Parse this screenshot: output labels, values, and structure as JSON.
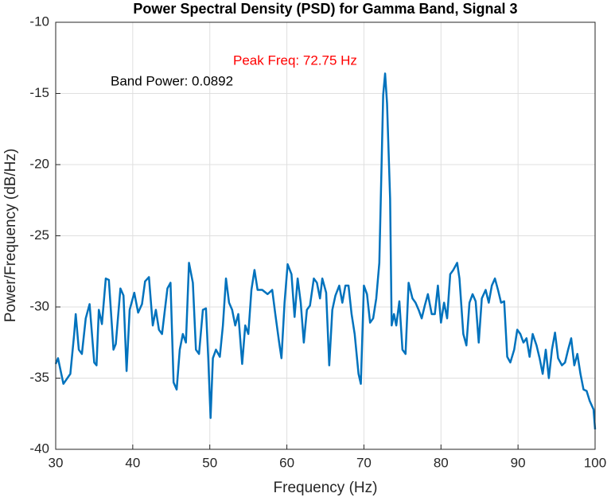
{
  "chart_data": {
    "type": "line",
    "title": "Power Spectral Density (PSD) for Gamma Band, Signal 3",
    "x_label": "Frequency (Hz)",
    "y_label": "Power/Frequency (dB/Hz)",
    "annotations": [
      "Peak Freq: 72.75 Hz",
      "Band Power: 0.0892"
    ],
    "xlim": [
      30,
      100
    ],
    "xticks": [
      30,
      40,
      50,
      60,
      70,
      80,
      90,
      100
    ],
    "ylim": [
      -40,
      -10
    ],
    "yticks": [
      -40,
      -35,
      -30,
      -25,
      -20,
      -15,
      -10
    ],
    "grid": true,
    "series": [
      {
        "color": "#0072bd",
        "x": [
          30,
          30.3,
          31,
          31.9,
          32.4,
          32.6,
          33,
          33.4,
          33.9,
          34.4,
          35,
          35.3,
          35.6,
          36,
          36.5,
          36.9,
          37.5,
          37.8,
          38.4,
          38.8,
          39.2,
          39.6,
          40.2,
          40.7,
          41.2,
          41.6,
          42.1,
          42.6,
          43,
          43.4,
          43.8,
          44.5,
          44.9,
          45.3,
          45.7,
          46.1,
          46.5,
          46.9,
          47.3,
          47.8,
          48.2,
          48.6,
          49.1,
          49.5,
          49.8,
          50.1,
          50.4,
          50.8,
          51.3,
          51.7,
          52.1,
          52.5,
          52.9,
          53.3,
          53.7,
          54.2,
          54.6,
          55,
          55.4,
          55.8,
          56.2,
          56.8,
          57.5,
          58.1,
          58.5,
          59,
          59.3,
          59.7,
          60.1,
          60.6,
          61,
          61.4,
          61.8,
          62.2,
          62.6,
          63,
          63.5,
          63.9,
          64.3,
          64.6,
          65.1,
          65.5,
          65.9,
          66.3,
          66.8,
          67.2,
          67.6,
          68,
          68.4,
          68.8,
          69.3,
          69.6,
          70,
          70.4,
          70.8,
          71.2,
          71.6,
          72,
          72.5,
          72.75,
          73,
          73.4,
          73.6,
          73.9,
          74.2,
          74.6,
          75,
          75.4,
          75.8,
          76.3,
          76.7,
          77.1,
          77.5,
          77.9,
          78.3,
          78.8,
          79.2,
          79.6,
          80,
          80.4,
          80.8,
          81.2,
          81.6,
          82.1,
          82.4,
          82.9,
          83.3,
          83.7,
          84.1,
          84.5,
          84.9,
          85.3,
          85.8,
          86.2,
          86.6,
          87,
          87.4,
          87.8,
          88.2,
          88.6,
          89,
          89.5,
          89.9,
          90.3,
          90.7,
          91.1,
          91.5,
          91.9,
          92.4,
          92.8,
          93.2,
          93.6,
          94,
          94.4,
          94.8,
          95.2,
          95.7,
          96.1,
          96.5,
          96.9,
          97.3,
          97.7,
          98.1,
          98.5,
          98.9,
          99.3,
          99.8,
          100
        ],
        "values": [
          -34,
          -33.6,
          -35.4,
          -34.7,
          -31.9,
          -30.5,
          -33,
          -33.3,
          -30.8,
          -29.8,
          -33.9,
          -34.1,
          -30.2,
          -31.2,
          -28,
          -28.1,
          -33,
          -32.6,
          -28.7,
          -29.2,
          -34.5,
          -30.2,
          -29,
          -30.4,
          -29.8,
          -28.2,
          -27.9,
          -31.3,
          -30.2,
          -31.6,
          -31.9,
          -28.7,
          -28.3,
          -35.3,
          -35.8,
          -33,
          -31.9,
          -32.5,
          -26.9,
          -28.3,
          -33,
          -33.3,
          -30.2,
          -30.1,
          -33.6,
          -37.8,
          -33.6,
          -33,
          -33.5,
          -31.3,
          -28,
          -29.7,
          -30.2,
          -31.3,
          -30.5,
          -34,
          -31.3,
          -31.9,
          -28.8,
          -27.4,
          -28.8,
          -28.8,
          -29.1,
          -28.8,
          -30.5,
          -32.5,
          -33.6,
          -29.7,
          -27,
          -27.7,
          -30.7,
          -28,
          -29.7,
          -32.5,
          -30.2,
          -29.9,
          -28,
          -28.3,
          -29.4,
          -28,
          -29,
          -34.1,
          -30.2,
          -29.2,
          -28.5,
          -29.7,
          -28.5,
          -28.5,
          -30.5,
          -31.9,
          -34.7,
          -35.4,
          -28.5,
          -29.1,
          -31.1,
          -30.8,
          -29.4,
          -26.9,
          -15.1,
          -13.6,
          -15.7,
          -22.4,
          -31.3,
          -30.5,
          -31.3,
          -29.6,
          -33,
          -33.3,
          -28.3,
          -29.4,
          -29.7,
          -30.2,
          -30.8,
          -29.9,
          -29.1,
          -30.5,
          -30.5,
          -28.5,
          -31.1,
          -29.7,
          -30.8,
          -27.7,
          -27.4,
          -26.9,
          -28,
          -31.9,
          -32.7,
          -29.7,
          -29.1,
          -29.6,
          -32.5,
          -29.4,
          -28.8,
          -29.7,
          -28.5,
          -28,
          -28.8,
          -29.7,
          -29.6,
          -33.5,
          -33.9,
          -33,
          -31.6,
          -31.9,
          -32.5,
          -32.2,
          -33.5,
          -31.9,
          -32.7,
          -33.6,
          -34.7,
          -33,
          -35,
          -33,
          -31.8,
          -33.6,
          -34.1,
          -33.9,
          -33,
          -32.2,
          -34.1,
          -33.3,
          -34.7,
          -35.8,
          -35.9,
          -36.6,
          -37.2,
          -38.6
        ]
      }
    ]
  }
}
